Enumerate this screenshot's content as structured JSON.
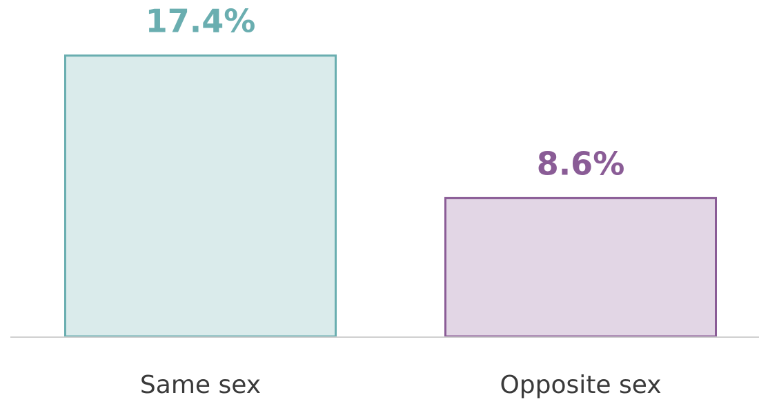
{
  "chart_data": {
    "type": "bar",
    "categories": [
      "Same sex",
      "Opposite sex"
    ],
    "values": [
      17.4,
      8.6
    ],
    "value_labels": [
      "17.4%",
      "8.6%"
    ],
    "colors": [
      "#6aaeb0",
      "#8a5c96"
    ]
  }
}
